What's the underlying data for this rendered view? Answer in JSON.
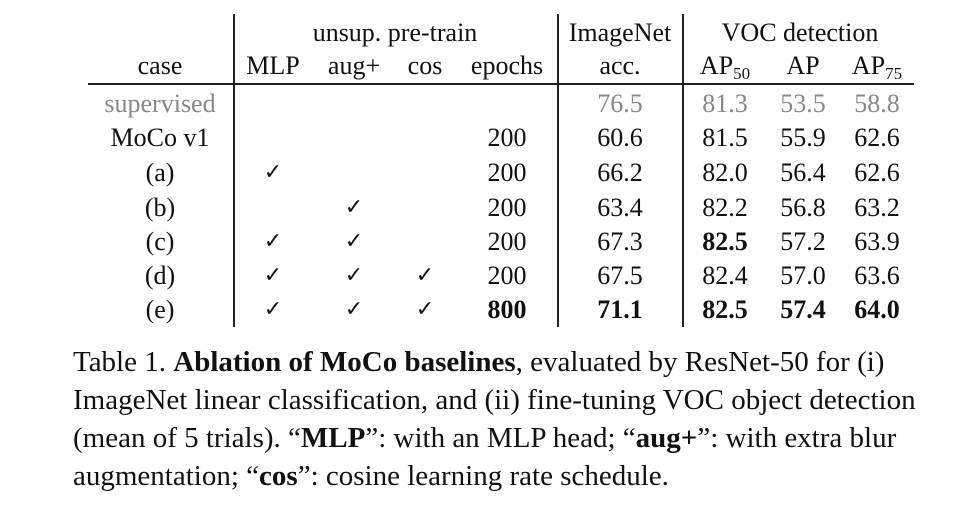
{
  "header": {
    "case": "case",
    "unsup_group": "unsup. pre-train",
    "mlp": "MLP",
    "aug": "aug+",
    "cos": "cos",
    "epochs": "epochs",
    "imagenet": "ImageNet",
    "acc": "acc.",
    "voc_group": "VOC detection",
    "ap_base": "AP",
    "ap50_sub": "50",
    "ap": "AP",
    "ap75_sub": "75"
  },
  "check_symbol": "✓",
  "rows": [
    {
      "case": "supervised",
      "epochs": "",
      "acc": "76.5",
      "ap50": "81.3",
      "ap": "53.5",
      "ap75": "58.8"
    },
    {
      "case": "MoCo v1",
      "epochs": "200",
      "acc": "60.6",
      "ap50": "81.5",
      "ap": "55.9",
      "ap75": "62.6"
    },
    {
      "case": "(a)",
      "epochs": "200",
      "acc": "66.2",
      "ap50": "82.0",
      "ap": "56.4",
      "ap75": "62.6"
    },
    {
      "case": "(b)",
      "epochs": "200",
      "acc": "63.4",
      "ap50": "82.2",
      "ap": "56.8",
      "ap75": "63.2"
    },
    {
      "case": "(c)",
      "epochs": "200",
      "acc": "67.3",
      "ap50": "82.5",
      "ap": "57.2",
      "ap75": "63.9"
    },
    {
      "case": "(d)",
      "epochs": "200",
      "acc": "67.5",
      "ap50": "82.4",
      "ap": "57.0",
      "ap75": "63.6"
    },
    {
      "case": "(e)",
      "epochs": "800",
      "acc": "71.1",
      "ap50": "82.5",
      "ap": "57.4",
      "ap75": "64.0"
    }
  ],
  "caption": {
    "lead": "Table 1.",
    "title": "Ablation of MoCo baselines",
    "part1": ", evaluated by ResNet-50 for (i) ImageNet linear classification, and (ii) fine-tuning VOC object detection (mean of 5 trials). “",
    "mlp": "MLP",
    "part2": "”: with an MLP head; “",
    "aug": "aug+",
    "part3": "”: with extra blur augmentation; “",
    "cos": "cos",
    "part4": "”: cosine learning rate schedule."
  }
}
